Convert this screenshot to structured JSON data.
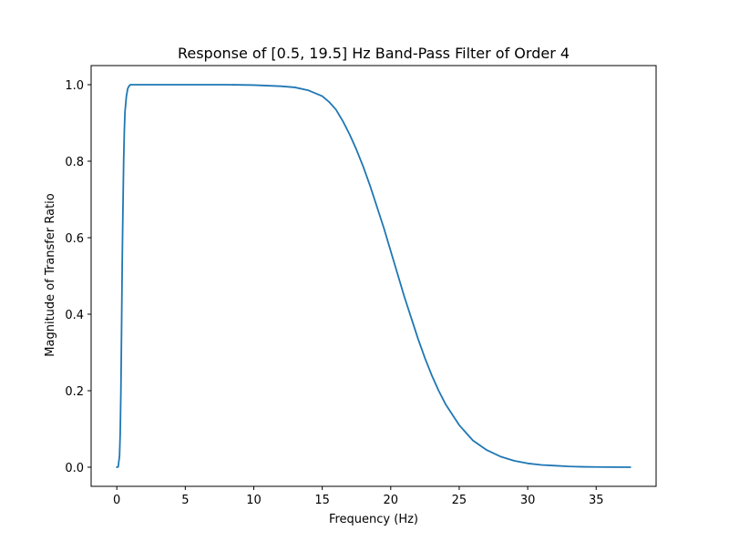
{
  "chart_data": {
    "type": "line",
    "title": "Response of [0.5, 19.5] Hz Band-Pass Filter of Order 4",
    "xlabel": "Frequency (Hz)",
    "ylabel": "Magnitude of Transfer Ratio",
    "xlim": [
      -1.875,
      39.375
    ],
    "ylim": [
      -0.05,
      1.05
    ],
    "xticks": [
      0,
      5,
      10,
      15,
      20,
      25,
      30,
      35
    ],
    "yticks": [
      0.0,
      0.2,
      0.4,
      0.6,
      0.8,
      1.0
    ],
    "xtick_labels": [
      "0",
      "5",
      "10",
      "15",
      "20",
      "25",
      "30",
      "35"
    ],
    "ytick_labels": [
      "0.0",
      "0.2",
      "0.4",
      "0.6",
      "0.8",
      "1.0"
    ],
    "grid": false,
    "legend": false,
    "series": [
      {
        "color": "#1f77b4",
        "x": [
          0.0,
          0.1,
          0.2,
          0.25,
          0.3,
          0.35,
          0.4,
          0.45,
          0.5,
          0.55,
          0.6,
          0.7,
          0.8,
          0.9,
          1.0,
          1.2,
          1.5,
          2.0,
          3.0,
          5.0,
          8.0,
          10.0,
          12.0,
          13.0,
          14.0,
          15.0,
          15.5,
          16.0,
          16.5,
          17.0,
          17.5,
          18.0,
          18.5,
          19.0,
          19.5,
          20.0,
          20.5,
          21.0,
          21.5,
          22.0,
          22.5,
          23.0,
          23.5,
          24.0,
          25.0,
          26.0,
          27.0,
          28.0,
          29.0,
          30.0,
          31.0,
          32.0,
          33.0,
          34.0,
          35.0,
          36.0,
          37.5
        ],
        "y": [
          0.0,
          0.001,
          0.03,
          0.09,
          0.2,
          0.37,
          0.55,
          0.68,
          0.8,
          0.88,
          0.93,
          0.97,
          0.99,
          0.997,
          1.0,
          1.0,
          1.0,
          1.0,
          1.0,
          1.0,
          1.0,
          0.999,
          0.996,
          0.993,
          0.985,
          0.97,
          0.955,
          0.935,
          0.905,
          0.87,
          0.83,
          0.785,
          0.735,
          0.68,
          0.625,
          0.565,
          0.505,
          0.445,
          0.39,
          0.335,
          0.285,
          0.24,
          0.2,
          0.165,
          0.11,
          0.07,
          0.045,
          0.028,
          0.017,
          0.01,
          0.006,
          0.004,
          0.002,
          0.001,
          0.0006,
          0.0003,
          0.0
        ]
      }
    ]
  }
}
